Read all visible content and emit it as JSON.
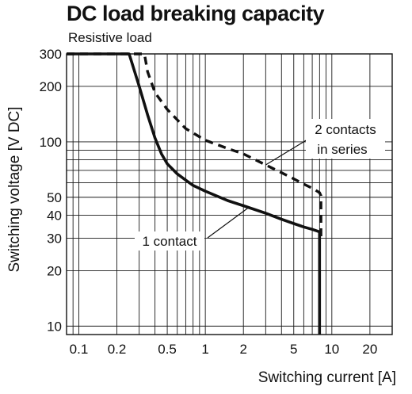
{
  "chart_data": {
    "type": "line",
    "title": "DC load breaking capacity",
    "subtitle": "Resistive load",
    "xlabel": "Switching current [A]",
    "ylabel": "Switching voltage [V DC]",
    "x_scale": "log",
    "y_scale": "log",
    "xlim": [
      0.08,
      30
    ],
    "ylim": [
      9,
      300
    ],
    "x_ticks": [
      {
        "value": 0.1,
        "label": "0.1"
      },
      {
        "value": 0.2,
        "label": "0.2"
      },
      {
        "value": 0.5,
        "label": "0.5"
      },
      {
        "value": 1,
        "label": "1"
      },
      {
        "value": 2,
        "label": "2"
      },
      {
        "value": 5,
        "label": "5"
      },
      {
        "value": 10,
        "label": "10"
      },
      {
        "value": 20,
        "label": "20"
      }
    ],
    "y_ticks": [
      {
        "value": 10,
        "label": "10"
      },
      {
        "value": 20,
        "label": "20"
      },
      {
        "value": 30,
        "label": "30"
      },
      {
        "value": 40,
        "label": "40"
      },
      {
        "value": 50,
        "label": "50"
      },
      {
        "value": 100,
        "label": "100"
      },
      {
        "value": 200,
        "label": "200"
      },
      {
        "value": 300,
        "label": "300"
      }
    ],
    "x_grid": [
      0.08,
      0.09,
      0.1,
      0.2,
      0.3,
      0.4,
      0.5,
      0.6,
      0.7,
      0.8,
      0.9,
      1,
      2,
      3,
      4,
      5,
      6,
      7,
      8,
      9,
      10,
      20,
      30
    ],
    "y_grid": [
      9,
      10,
      20,
      30,
      40,
      50,
      60,
      70,
      80,
      90,
      100,
      200,
      300
    ],
    "grid": true,
    "series": [
      {
        "name": "1 contact",
        "style": "solid",
        "x": [
          0.08,
          0.25,
          0.3,
          0.35,
          0.4,
          0.45,
          0.5,
          0.6,
          0.7,
          0.8,
          1,
          1.5,
          2,
          3,
          4,
          5,
          6,
          7,
          8,
          8,
          8
        ],
        "y": [
          300,
          300,
          200,
          140,
          105,
          86,
          76,
          67,
          62,
          58,
          54,
          48,
          45,
          41,
          38,
          36,
          34.5,
          33.5,
          32.5,
          20,
          9
        ]
      },
      {
        "name": "2 contacts in series",
        "style": "dashed",
        "x": [
          0.08,
          0.33,
          0.35,
          0.4,
          0.5,
          0.7,
          1,
          1.5,
          2,
          3,
          4,
          5,
          6,
          7,
          8,
          8.2,
          8.2
        ],
        "y": [
          300,
          300,
          240,
          185,
          150,
          118,
          102,
          92,
          86,
          75,
          68,
          63,
          59,
          56,
          53,
          51,
          30
        ]
      }
    ],
    "annotations": [
      {
        "label": "1 contact",
        "points_to": "1 contact"
      },
      {
        "label": "2 contacts",
        "label_line2": "in series",
        "points_to": "2 contacts in series"
      }
    ]
  }
}
